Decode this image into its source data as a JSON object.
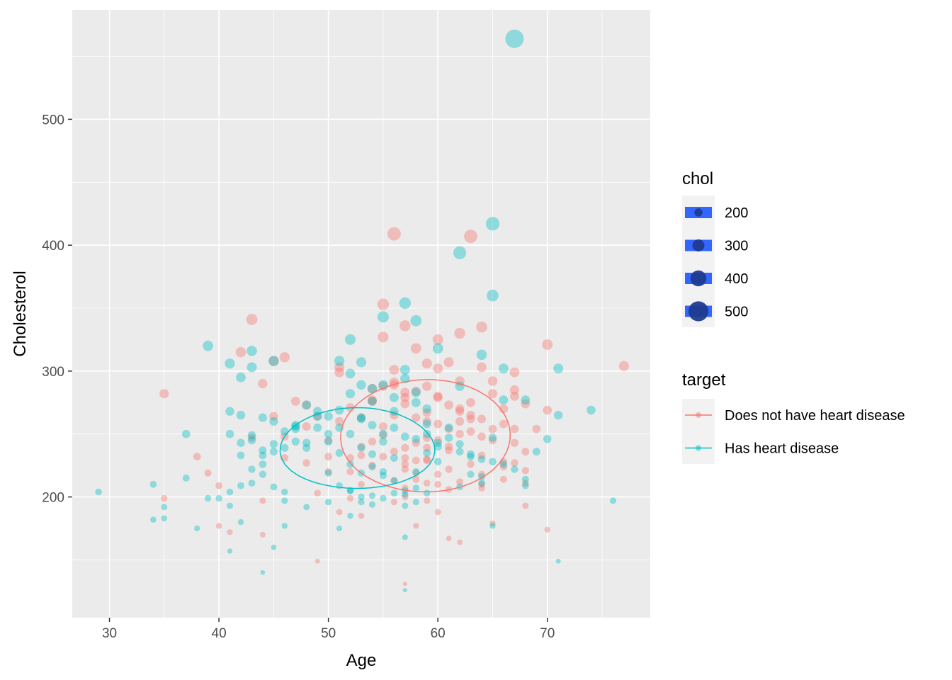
{
  "chart_data": {
    "type": "scatter",
    "xlabel": "Age",
    "ylabel": "Cholesterol",
    "xlim": [
      26.6,
      79.4
    ],
    "ylim": [
      104.1,
      586.9
    ],
    "x_ticks": [
      30,
      40,
      50,
      60,
      70
    ],
    "y_ticks": [
      200,
      300,
      400,
      500
    ],
    "grid": true,
    "legend_placement": "right",
    "size_legend": {
      "title": "chol",
      "entries": [
        {
          "label": "200",
          "value": 200
        },
        {
          "label": "300",
          "value": 300
        },
        {
          "label": "400",
          "value": 400
        },
        {
          "label": "500",
          "value": 500
        }
      ]
    },
    "color_legend": {
      "title": "target",
      "entries": [
        {
          "label": "Does not have heart disease",
          "color": "#F8766D"
        },
        {
          "label": "Has heart disease",
          "color": "#00BFC4"
        }
      ]
    },
    "series": [
      {
        "name": "Does not have heart disease",
        "color": "#F8766D",
        "points": [
          [
            56,
            409
          ],
          [
            63,
            407
          ],
          [
            35,
            282
          ],
          [
            43,
            341
          ],
          [
            55,
            353
          ],
          [
            57,
            336
          ],
          [
            62,
            330
          ],
          [
            64,
            335
          ],
          [
            60,
            325
          ],
          [
            58,
            318
          ],
          [
            61,
            307
          ],
          [
            70,
            321
          ],
          [
            77,
            304
          ],
          [
            67,
            299
          ],
          [
            64,
            303
          ],
          [
            42,
            315
          ],
          [
            46,
            311
          ],
          [
            45,
            308
          ],
          [
            44,
            290
          ],
          [
            51,
            299
          ],
          [
            54,
            286
          ],
          [
            56,
            291
          ],
          [
            59,
            288
          ],
          [
            57,
            283
          ],
          [
            60,
            279
          ],
          [
            62,
            268
          ],
          [
            63,
            275
          ],
          [
            65,
            282
          ],
          [
            66,
            270
          ],
          [
            67,
            285
          ],
          [
            68,
            274
          ],
          [
            70,
            269
          ],
          [
            58,
            263
          ],
          [
            59,
            267
          ],
          [
            61,
            254
          ],
          [
            62,
            260
          ],
          [
            63,
            252
          ],
          [
            64,
            248
          ],
          [
            65,
            245
          ],
          [
            66,
            258
          ],
          [
            67,
            254
          ],
          [
            60,
            245
          ],
          [
            58,
            243
          ],
          [
            57,
            239
          ],
          [
            56,
            236
          ],
          [
            55,
            232
          ],
          [
            59,
            229
          ],
          [
            61,
            222
          ],
          [
            62,
            212
          ],
          [
            63,
            226
          ],
          [
            64,
            210
          ],
          [
            66,
            214
          ],
          [
            67,
            227
          ],
          [
            68,
            221
          ],
          [
            69,
            254
          ],
          [
            57,
            226
          ],
          [
            58,
            219
          ],
          [
            60,
            218
          ],
          [
            59,
            211
          ],
          [
            57,
            207
          ],
          [
            56,
            213
          ],
          [
            61,
            206
          ],
          [
            64,
            207
          ],
          [
            38,
            232
          ],
          [
            40,
            209
          ],
          [
            40,
            177
          ],
          [
            41,
            172
          ],
          [
            44,
            170
          ],
          [
            35,
            199
          ],
          [
            46,
            248
          ],
          [
            47,
            276
          ],
          [
            48,
            273
          ],
          [
            49,
            264
          ],
          [
            50,
            245
          ],
          [
            51,
            260
          ],
          [
            52,
            271
          ],
          [
            53,
            263
          ],
          [
            54,
            277
          ],
          [
            55,
            256
          ],
          [
            50,
            232
          ],
          [
            48,
            227
          ],
          [
            49,
            203
          ],
          [
            52,
            199
          ],
          [
            51,
            188
          ],
          [
            53,
            185
          ],
          [
            56,
            196
          ],
          [
            58,
            177
          ],
          [
            60,
            188
          ],
          [
            61,
            167
          ],
          [
            62,
            164
          ],
          [
            65,
            179
          ],
          [
            70,
            174
          ],
          [
            68,
            193
          ],
          [
            49,
            149
          ],
          [
            57,
            131
          ],
          [
            53,
            233
          ],
          [
            54,
            244
          ],
          [
            53,
            210
          ],
          [
            52,
            220
          ],
          [
            46,
            231
          ],
          [
            45,
            264
          ],
          [
            43,
            247
          ],
          [
            39,
            219
          ],
          [
            44,
            197
          ],
          [
            48,
            256
          ],
          [
            50,
            220
          ],
          [
            51,
            303
          ],
          [
            54,
            276
          ],
          [
            55,
            327
          ],
          [
            56,
            289
          ],
          [
            57,
            279
          ],
          [
            59,
            306
          ],
          [
            60,
            280
          ],
          [
            61,
            273
          ],
          [
            62,
            292
          ],
          [
            63,
            265
          ],
          [
            64,
            262
          ],
          [
            65,
            292
          ],
          [
            66,
            228
          ],
          [
            67,
            280
          ],
          [
            68,
            236
          ],
          [
            57,
            274
          ],
          [
            58,
            284
          ],
          [
            59,
            260
          ],
          [
            60,
            258
          ],
          [
            56,
            265
          ],
          [
            55,
            249
          ],
          [
            54,
            225
          ],
          [
            53,
            240
          ],
          [
            52,
            231
          ],
          [
            57,
            231
          ],
          [
            59,
            239
          ],
          [
            58,
            229
          ],
          [
            57,
            222
          ],
          [
            59,
            247
          ],
          [
            61,
            240
          ],
          [
            62,
            270
          ],
          [
            63,
            262
          ],
          [
            64,
            233
          ],
          [
            65,
            254
          ],
          [
            66,
            224
          ],
          [
            67,
            243
          ],
          [
            68,
            211
          ],
          [
            55,
            288
          ],
          [
            56,
            301
          ],
          [
            60,
            302
          ],
          [
            61,
            237
          ],
          [
            62,
            250
          ],
          [
            64,
            218
          ],
          [
            57,
            200
          ],
          [
            59,
            197
          ],
          [
            60,
            210
          ],
          [
            58,
            214
          ],
          [
            59,
            230
          ]
        ]
      },
      {
        "name": "Has heart disease",
        "color": "#00BFC4",
        "points": [
          [
            67,
            564
          ],
          [
            65,
            417
          ],
          [
            62,
            394
          ],
          [
            65,
            360
          ],
          [
            57,
            354
          ],
          [
            55,
            343
          ],
          [
            58,
            340
          ],
          [
            52,
            325
          ],
          [
            39,
            320
          ],
          [
            60,
            318
          ],
          [
            64,
            313
          ],
          [
            41,
            306
          ],
          [
            43,
            316
          ],
          [
            43,
            303
          ],
          [
            53,
            307
          ],
          [
            51,
            308
          ],
          [
            45,
            308
          ],
          [
            66,
            302
          ],
          [
            71,
            302
          ],
          [
            57,
            301
          ],
          [
            52,
            298
          ],
          [
            42,
            295
          ],
          [
            62,
            288
          ],
          [
            53,
            289
          ],
          [
            54,
            286
          ],
          [
            74,
            269
          ],
          [
            71,
            265
          ],
          [
            68,
            277
          ],
          [
            66,
            277
          ],
          [
            58,
            283
          ],
          [
            59,
            270
          ],
          [
            41,
            268
          ],
          [
            42,
            265
          ],
          [
            44,
            263
          ],
          [
            45,
            260
          ],
          [
            47,
            256
          ],
          [
            49,
            268
          ],
          [
            50,
            264
          ],
          [
            51,
            255
          ],
          [
            52,
            250
          ],
          [
            53,
            262
          ],
          [
            54,
            257
          ],
          [
            55,
            250
          ],
          [
            56,
            255
          ],
          [
            57,
            248
          ],
          [
            58,
            246
          ],
          [
            59,
            258
          ],
          [
            60,
            240
          ],
          [
            61,
            247
          ],
          [
            62,
            236
          ],
          [
            63,
            232
          ],
          [
            64,
            230
          ],
          [
            65,
            247
          ],
          [
            66,
            226
          ],
          [
            67,
            222
          ],
          [
            68,
            214
          ],
          [
            69,
            236
          ],
          [
            70,
            246
          ],
          [
            37,
            250
          ],
          [
            39,
            199
          ],
          [
            40,
            199
          ],
          [
            41,
            204
          ],
          [
            42,
            243
          ],
          [
            43,
            245
          ],
          [
            44,
            233
          ],
          [
            45,
            236
          ],
          [
            46,
            239
          ],
          [
            47,
            254
          ],
          [
            48,
            243
          ],
          [
            49,
            264
          ],
          [
            50,
            244
          ],
          [
            51,
            235
          ],
          [
            52,
            226
          ],
          [
            53,
            219
          ],
          [
            54,
            224
          ],
          [
            55,
            220
          ],
          [
            56,
            213
          ],
          [
            57,
            202
          ],
          [
            58,
            196
          ],
          [
            59,
            235
          ],
          [
            60,
            228
          ],
          [
            62,
            208
          ],
          [
            63,
            234
          ],
          [
            64,
            211
          ],
          [
            65,
            177
          ],
          [
            37,
            215
          ],
          [
            38,
            175
          ],
          [
            34,
            210
          ],
          [
            34,
            182
          ],
          [
            35,
            183
          ],
          [
            35,
            192
          ],
          [
            29,
            204
          ],
          [
            41,
            193
          ],
          [
            41,
            157
          ],
          [
            42,
            180
          ],
          [
            43,
            211
          ],
          [
            44,
            218
          ],
          [
            44,
            226
          ],
          [
            45,
            208
          ],
          [
            46,
            197
          ],
          [
            46,
            204
          ],
          [
            46,
            177
          ],
          [
            45,
            160
          ],
          [
            44,
            140
          ],
          [
            42,
            233
          ],
          [
            43,
            249
          ],
          [
            41,
            250
          ],
          [
            42,
            209
          ],
          [
            43,
            222
          ],
          [
            47,
            244
          ],
          [
            48,
            239
          ],
          [
            50,
            219
          ],
          [
            51,
            209
          ],
          [
            52,
            205
          ],
          [
            53,
            196
          ],
          [
            54,
            201
          ],
          [
            55,
            217
          ],
          [
            56,
            231
          ],
          [
            57,
            205
          ],
          [
            58,
            207
          ],
          [
            51,
            175
          ],
          [
            50,
            196
          ],
          [
            52,
            185
          ],
          [
            48,
            192
          ],
          [
            57,
            168
          ],
          [
            57,
            126
          ],
          [
            71,
            149
          ],
          [
            76,
            197
          ],
          [
            68,
            209
          ],
          [
            65,
            228
          ],
          [
            64,
            216
          ],
          [
            63,
            218
          ],
          [
            62,
            242
          ],
          [
            61,
            255
          ],
          [
            60,
            243
          ],
          [
            59,
            250
          ],
          [
            58,
            275
          ],
          [
            56,
            279
          ],
          [
            57,
            294
          ],
          [
            55,
            289
          ],
          [
            54,
            276
          ],
          [
            53,
            263
          ],
          [
            52,
            282
          ],
          [
            51,
            269
          ],
          [
            50,
            250
          ],
          [
            49,
            255
          ],
          [
            48,
            273
          ],
          [
            47,
            257
          ],
          [
            46,
            252
          ],
          [
            45,
            242
          ],
          [
            44,
            237
          ],
          [
            52,
            205
          ],
          [
            53,
            200
          ],
          [
            54,
            194
          ],
          [
            55,
            199
          ],
          [
            56,
            203
          ],
          [
            57,
            193
          ],
          [
            58,
            220
          ],
          [
            59,
            203
          ],
          [
            53,
            239
          ],
          [
            54,
            234
          ],
          [
            55,
            244
          ],
          [
            56,
            268
          ]
        ]
      }
    ]
  },
  "density": {
    "bandwidth": [
      7,
      38
    ],
    "levels": [
      0.0002,
      0.00035,
      0.0005,
      0.00065,
      0.0008,
      0.00095
    ]
  }
}
